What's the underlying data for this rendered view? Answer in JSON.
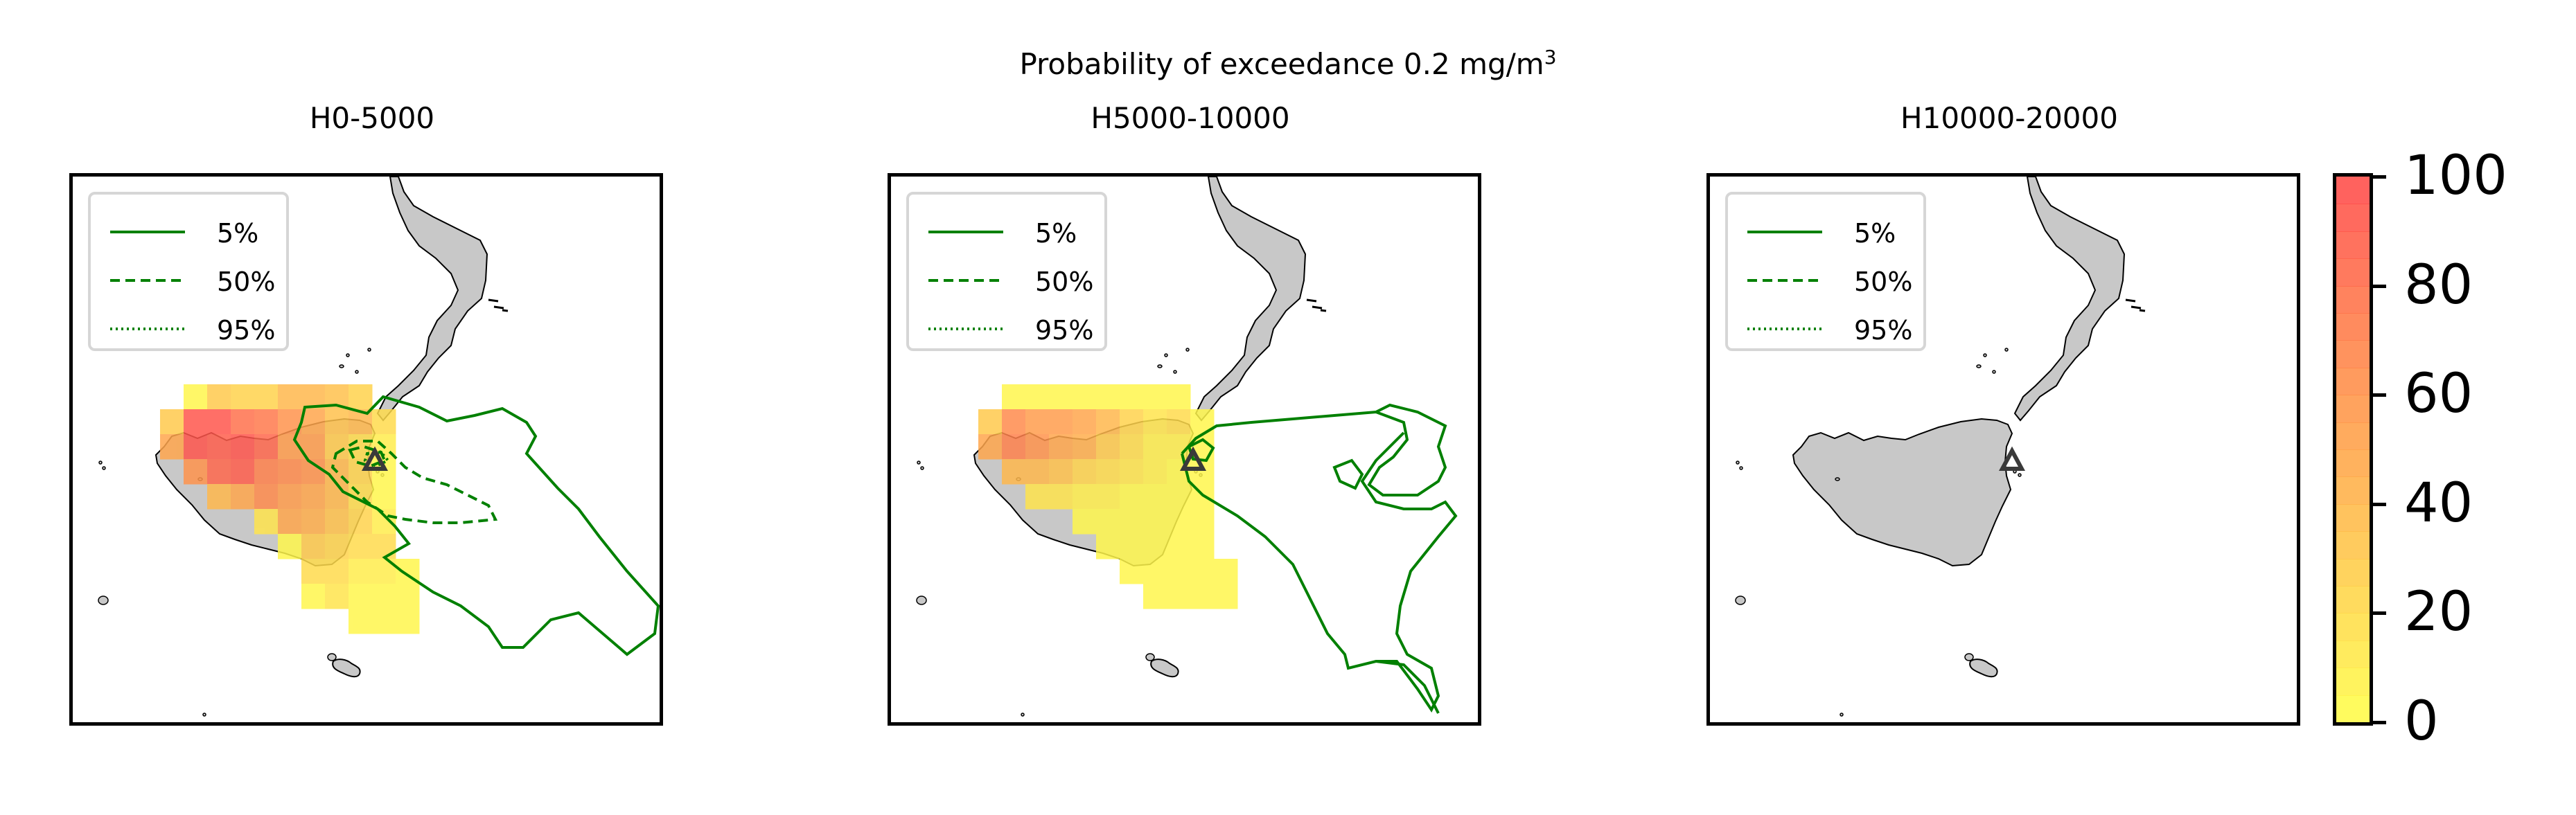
{
  "title": "Probability of exceedance 0.2 mg/m",
  "title_superscript": "3",
  "colors": {
    "land": "#c8c8c8",
    "contour": "#008000",
    "volcano_marker": "#3a3a3a",
    "cmap_low": "#ffff4d",
    "cmap_mid": "#ffa64d",
    "cmap_high": "#ff4d4d"
  },
  "legend": [
    {
      "label": "5%",
      "style": "solid"
    },
    {
      "label": "50%",
      "style": "dashed"
    },
    {
      "label": "95%",
      "style": "dotted"
    }
  ],
  "panels": [
    {
      "title": "H0-5000",
      "cells": [
        [
          0,
          3,
          5
        ],
        [
          0,
          4,
          30
        ],
        [
          0,
          5,
          25
        ],
        [
          0,
          6,
          25
        ],
        [
          0,
          7,
          40
        ],
        [
          0,
          8,
          40
        ],
        [
          0,
          9,
          35
        ],
        [
          0,
          10,
          25
        ],
        [
          1,
          2,
          30
        ],
        [
          1,
          3,
          95
        ],
        [
          1,
          4,
          95
        ],
        [
          1,
          5,
          80
        ],
        [
          1,
          6,
          75
        ],
        [
          1,
          7,
          60
        ],
        [
          1,
          8,
          50
        ],
        [
          1,
          9,
          35
        ],
        [
          1,
          10,
          40
        ],
        [
          1,
          11,
          20
        ],
        [
          2,
          2,
          50
        ],
        [
          2,
          3,
          95
        ],
        [
          2,
          4,
          90
        ],
        [
          2,
          5,
          95
        ],
        [
          2,
          6,
          85
        ],
        [
          2,
          7,
          55
        ],
        [
          2,
          8,
          55
        ],
        [
          2,
          9,
          30
        ],
        [
          2,
          10,
          20
        ],
        [
          2,
          11,
          10
        ],
        [
          3,
          3,
          60
        ],
        [
          3,
          4,
          85
        ],
        [
          3,
          5,
          90
        ],
        [
          3,
          6,
          70
        ],
        [
          3,
          7,
          65
        ],
        [
          3,
          8,
          60
        ],
        [
          3,
          9,
          40
        ],
        [
          3,
          10,
          25
        ],
        [
          3,
          11,
          5
        ],
        [
          4,
          4,
          40
        ],
        [
          4,
          5,
          50
        ],
        [
          4,
          6,
          65
        ],
        [
          4,
          7,
          55
        ],
        [
          4,
          8,
          50
        ],
        [
          4,
          9,
          40
        ],
        [
          4,
          10,
          20
        ],
        [
          4,
          11,
          5
        ],
        [
          5,
          6,
          15
        ],
        [
          5,
          7,
          50
        ],
        [
          5,
          8,
          45
        ],
        [
          5,
          9,
          35
        ],
        [
          5,
          10,
          25
        ],
        [
          5,
          11,
          10
        ],
        [
          6,
          7,
          5
        ],
        [
          6,
          8,
          30
        ],
        [
          6,
          9,
          25
        ],
        [
          6,
          10,
          20
        ],
        [
          6,
          11,
          20
        ],
        [
          7,
          8,
          20
        ],
        [
          7,
          9,
          20
        ],
        [
          7,
          10,
          10
        ],
        [
          7,
          11,
          10
        ],
        [
          7,
          12,
          5
        ],
        [
          8,
          8,
          5
        ],
        [
          8,
          9,
          15
        ],
        [
          8,
          10,
          5
        ],
        [
          8,
          11,
          5
        ],
        [
          8,
          12,
          5
        ],
        [
          9,
          10,
          5
        ],
        [
          9,
          11,
          5
        ],
        [
          9,
          12,
          5
        ]
      ]
    },
    {
      "title": "H5000-10000",
      "cells": [
        [
          0,
          3,
          5
        ],
        [
          0,
          4,
          5
        ],
        [
          0,
          5,
          5
        ],
        [
          0,
          6,
          5
        ],
        [
          0,
          7,
          5
        ],
        [
          0,
          8,
          5
        ],
        [
          0,
          9,
          5
        ],
        [
          0,
          10,
          5
        ],
        [
          1,
          2,
          30
        ],
        [
          1,
          3,
          65
        ],
        [
          1,
          4,
          55
        ],
        [
          1,
          5,
          55
        ],
        [
          1,
          6,
          50
        ],
        [
          1,
          7,
          40
        ],
        [
          1,
          8,
          25
        ],
        [
          1,
          9,
          15
        ],
        [
          1,
          10,
          20
        ],
        [
          1,
          11,
          5
        ],
        [
          2,
          2,
          50
        ],
        [
          2,
          3,
          70
        ],
        [
          2,
          4,
          60
        ],
        [
          2,
          5,
          50
        ],
        [
          2,
          6,
          45
        ],
        [
          2,
          7,
          30
        ],
        [
          2,
          8,
          20
        ],
        [
          2,
          9,
          10
        ],
        [
          2,
          10,
          10
        ],
        [
          2,
          11,
          5
        ],
        [
          3,
          3,
          40
        ],
        [
          3,
          4,
          40
        ],
        [
          3,
          5,
          35
        ],
        [
          3,
          6,
          25
        ],
        [
          3,
          7,
          20
        ],
        [
          3,
          8,
          15
        ],
        [
          3,
          9,
          10
        ],
        [
          3,
          10,
          5
        ],
        [
          3,
          11,
          5
        ],
        [
          4,
          4,
          15
        ],
        [
          4,
          5,
          15
        ],
        [
          4,
          6,
          10
        ],
        [
          4,
          7,
          10
        ],
        [
          4,
          8,
          5
        ],
        [
          4,
          9,
          5
        ],
        [
          4,
          10,
          5
        ],
        [
          4,
          11,
          5
        ],
        [
          5,
          6,
          5
        ],
        [
          5,
          7,
          5
        ],
        [
          5,
          8,
          5
        ],
        [
          5,
          9,
          5
        ],
        [
          5,
          10,
          5
        ],
        [
          5,
          11,
          5
        ],
        [
          6,
          7,
          5
        ],
        [
          6,
          8,
          5
        ],
        [
          6,
          9,
          5
        ],
        [
          6,
          10,
          5
        ],
        [
          6,
          11,
          5
        ],
        [
          7,
          8,
          5
        ],
        [
          7,
          9,
          5
        ],
        [
          7,
          10,
          5
        ],
        [
          7,
          11,
          5
        ],
        [
          7,
          12,
          5
        ],
        [
          8,
          9,
          5
        ],
        [
          8,
          10,
          5
        ],
        [
          8,
          11,
          5
        ],
        [
          8,
          12,
          5
        ]
      ]
    },
    {
      "title": "H10000-20000",
      "cells": []
    }
  ],
  "colorbar": {
    "ticks": [
      "0",
      "20",
      "40",
      "60",
      "80",
      "100"
    ],
    "min": 0,
    "max": 100
  }
}
